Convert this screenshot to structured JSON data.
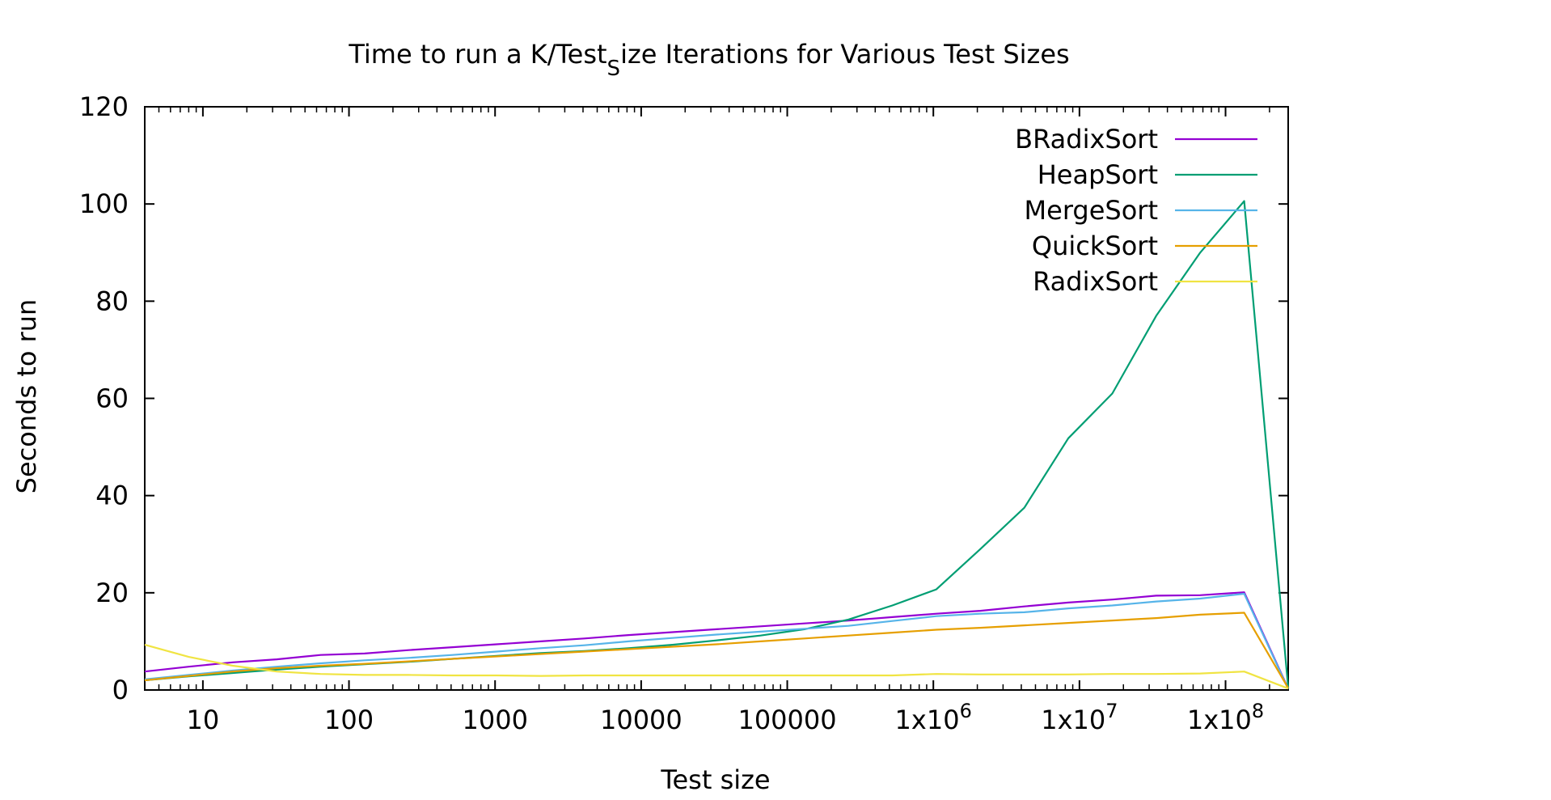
{
  "chart_data": {
    "type": "line",
    "title": "Time to run a K/Test",
    "title_subscript": "S",
    "title_suffix": "ize Iterations for Various Test Sizes",
    "xlabel": "Test size",
    "ylabel": "Seconds to run",
    "x_scale": "log",
    "xlim": [
      4,
      268435456
    ],
    "ylim": [
      0,
      120
    ],
    "grid": false,
    "legend_position": "top-right",
    "x_ticks": [
      {
        "value": 10,
        "label": "10"
      },
      {
        "value": 100,
        "label": "100"
      },
      {
        "value": 1000,
        "label": "1000"
      },
      {
        "value": 10000,
        "label": "10000"
      },
      {
        "value": 100000,
        "label": "100000"
      },
      {
        "value": 1000000,
        "label": "1x10",
        "sup": "6"
      },
      {
        "value": 10000000,
        "label": "1x10",
        "sup": "7"
      },
      {
        "value": 100000000,
        "label": "1x10",
        "sup": "8"
      }
    ],
    "y_ticks": [
      0,
      20,
      40,
      60,
      80,
      100,
      120
    ],
    "x": [
      4,
      8,
      16,
      32,
      64,
      128,
      256,
      512,
      1024,
      2048,
      4096,
      8192,
      16384,
      32768,
      65536,
      131072,
      262144,
      524288,
      1048576,
      2097152,
      4194304,
      8388608,
      16777216,
      33554432,
      67108864,
      134217728,
      268435456
    ],
    "series": [
      {
        "name": "BRadixSort",
        "color": "#9400d3",
        "values": [
          3.8,
          4.8,
          5.7,
          6.3,
          7.2,
          7.5,
          8.2,
          8.8,
          9.4,
          10.0,
          10.6,
          11.3,
          11.9,
          12.5,
          13.1,
          13.7,
          14.3,
          15.0,
          15.7,
          16.3,
          17.2,
          18.0,
          18.6,
          19.4,
          19.5,
          20.1,
          0.3
        ]
      },
      {
        "name": "HeapSort",
        "color": "#009e73",
        "values": [
          2.0,
          2.8,
          3.5,
          4.2,
          4.8,
          5.3,
          5.8,
          6.4,
          7.0,
          7.6,
          8.0,
          8.6,
          9.3,
          10.2,
          11.2,
          12.5,
          14.5,
          17.4,
          20.7,
          29.0,
          37.5,
          51.8,
          61.0,
          77.0,
          90.0,
          100.6,
          0.5
        ]
      },
      {
        "name": "MergeSort",
        "color": "#56b4e9",
        "values": [
          2.2,
          3.1,
          4.0,
          4.8,
          5.5,
          6.1,
          6.6,
          7.2,
          7.9,
          8.6,
          9.2,
          10.0,
          10.7,
          11.4,
          12.0,
          12.6,
          13.2,
          14.2,
          15.2,
          15.7,
          16.0,
          16.8,
          17.4,
          18.2,
          18.8,
          19.8,
          0.2
        ]
      },
      {
        "name": "QuickSort",
        "color": "#e69f00",
        "values": [
          2.0,
          2.9,
          3.8,
          4.5,
          5.0,
          5.4,
          5.9,
          6.4,
          6.9,
          7.4,
          7.9,
          8.4,
          8.9,
          9.4,
          10.0,
          10.6,
          11.2,
          11.8,
          12.4,
          12.8,
          13.3,
          13.8,
          14.3,
          14.8,
          15.5,
          15.9,
          0.4
        ]
      },
      {
        "name": "RadixSort",
        "color": "#f0e442",
        "values": [
          9.3,
          6.8,
          5.0,
          3.8,
          3.3,
          3.1,
          3.1,
          3.0,
          3.0,
          2.9,
          3.0,
          3.0,
          3.0,
          3.0,
          3.0,
          3.0,
          3.0,
          3.0,
          3.3,
          3.2,
          3.2,
          3.2,
          3.3,
          3.3,
          3.4,
          3.8,
          0.3
        ]
      }
    ]
  }
}
